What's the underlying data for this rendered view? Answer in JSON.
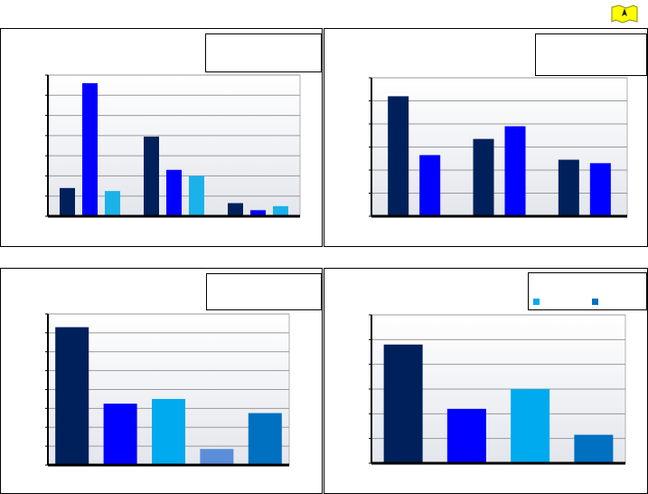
{
  "logo": {
    "icon": "map-pin-flag-icon",
    "color": "#ffff00"
  },
  "colors": {
    "navy": "#00205b",
    "blue": "#0000ff",
    "cyan": "#1ab2e8",
    "sky": "#00aaee",
    "steel": "#5b8dd9",
    "mid": "#0070c0",
    "gridline": "#9a9a9a",
    "plot_bg_top": "#ffffff",
    "plot_bg_bottom": "#e3e6ec"
  },
  "chart_data": [
    {
      "type": "bar",
      "panel": "top-left",
      "grid": true,
      "legend": "top-right",
      "ylim": [
        0,
        7
      ],
      "groups": [
        {
          "values": [
            1.4,
            6.6,
            1.25
          ]
        },
        {
          "values": [
            3.95,
            2.3,
            2.0
          ]
        },
        {
          "values": [
            0.65,
            0.3,
            0.5
          ]
        }
      ],
      "series_colors": [
        "#00205b",
        "#0000ff",
        "#1ab2e8"
      ]
    },
    {
      "type": "bar",
      "panel": "top-right",
      "grid": true,
      "legend": "top-right",
      "ylim": [
        0,
        6
      ],
      "groups": [
        {
          "values": [
            5.2,
            2.65
          ]
        },
        {
          "values": [
            3.35,
            3.9
          ]
        },
        {
          "values": [
            2.45,
            2.3
          ]
        }
      ],
      "series_colors": [
        "#00205b",
        "#0000ff"
      ]
    },
    {
      "type": "bar",
      "panel": "bottom-left",
      "grid": true,
      "legend": "top-right",
      "ylim": [
        0,
        8
      ],
      "values": [
        7.3,
        3.25,
        3.5,
        0.85,
        2.75
      ],
      "bar_colors": [
        "#00205b",
        "#0000ff",
        "#00aaee",
        "#5b8dd9",
        "#0070c0"
      ]
    },
    {
      "type": "bar",
      "panel": "bottom-right",
      "grid": true,
      "legend": "top-right",
      "ylim": [
        0,
        6
      ],
      "values": [
        4.8,
        2.2,
        3.0,
        1.15
      ],
      "bar_colors": [
        "#00205b",
        "#0000ff",
        "#00aaee",
        "#0070c0"
      ],
      "legend_swatches": [
        "#00aaee",
        "#0070c0"
      ]
    }
  ]
}
